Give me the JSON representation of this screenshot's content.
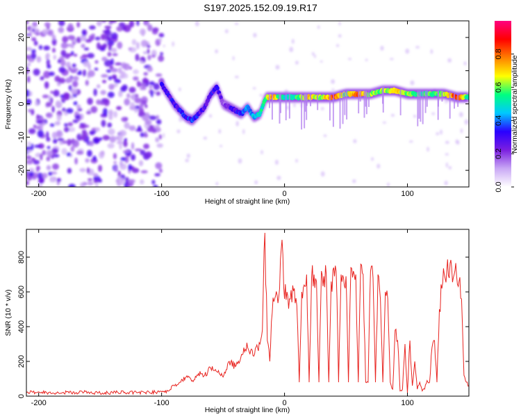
{
  "title": "S197.2025.152.09.19.R17",
  "chart_data": [
    {
      "type": "heatmap",
      "xlabel": "Height of straight line (km)",
      "ylabel": "Frequency (Hz)",
      "xlim": [
        -210,
        150
      ],
      "ylim": [
        -25,
        25
      ],
      "x_ticks": [
        -200,
        -100,
        0,
        100
      ],
      "y_ticks": [
        20,
        10,
        0,
        -10,
        -20
      ],
      "colorbar": {
        "label": "Normalized spectral amplitude",
        "range": [
          0,
          1
        ],
        "ticks": [
          "0.0",
          "0.2",
          "0.4",
          "0.6",
          "0.8"
        ],
        "colormap": [
          "#ffffff",
          "#c9a8f5",
          "#7b1fe0",
          "#2a00ff",
          "#00c8ff",
          "#00ff80",
          "#ffff00",
          "#ff8000",
          "#ff0000",
          "#ff0080"
        ]
      },
      "ridge": {
        "x": [
          -100,
          -95,
          -90,
          -85,
          -80,
          -75,
          -70,
          -65,
          -60,
          -55,
          -50,
          -45,
          -40,
          -35,
          -30,
          -25,
          -20,
          -15,
          -10,
          -5,
          0,
          10,
          20,
          30,
          40,
          50,
          60,
          70,
          80,
          90,
          100,
          110,
          120,
          130,
          140,
          150
        ],
        "freq_hz": [
          6,
          3,
          0,
          -2,
          -4,
          -5,
          -3,
          -1,
          3,
          5,
          0,
          -1,
          -2,
          -3,
          -1,
          -4,
          -3,
          2,
          2,
          2,
          2,
          2,
          2,
          2,
          2,
          3,
          3,
          3,
          4,
          4,
          3,
          3,
          3,
          3,
          2,
          2
        ],
        "amplitude": [
          0.3,
          0.3,
          0.3,
          0.3,
          0.35,
          0.35,
          0.3,
          0.25,
          0.3,
          0.3,
          0.2,
          0.25,
          0.3,
          0.35,
          0.4,
          0.45,
          0.5,
          0.55,
          0.8,
          0.55,
          0.5,
          0.55,
          0.7,
          0.6,
          0.85,
          0.6,
          0.8,
          0.6,
          0.6,
          0.7,
          0.6,
          0.55,
          0.55,
          0.6,
          0.85,
          0.5
        ]
      },
      "noise_region_x": [
        -210,
        -100
      ]
    },
    {
      "type": "line",
      "xlabel": "Height of straight line (km)",
      "ylabel": "SNR (10 * v/v)",
      "xlim": [
        -210,
        150
      ],
      "ylim": [
        0,
        960
      ],
      "x_ticks": [
        -200,
        -100,
        0,
        100
      ],
      "y_ticks": [
        0,
        200,
        400,
        600,
        800
      ],
      "color": "#e8231f",
      "series": [
        {
          "x": [
            -210,
            -200,
            -190,
            -180,
            -170,
            -160,
            -150,
            -140,
            -130,
            -120,
            -110,
            -100,
            -95,
            -90,
            -85,
            -80,
            -75,
            -70,
            -65,
            -60,
            -55,
            -50,
            -45,
            -40,
            -35,
            -30,
            -25,
            -20,
            -18,
            -16,
            -14,
            -12,
            -10,
            -8,
            -6,
            -4,
            -2,
            0,
            2,
            4,
            6,
            8,
            10,
            12,
            14,
            16,
            18,
            20,
            22,
            24,
            26,
            28,
            30,
            32,
            34,
            36,
            38,
            40,
            42,
            44,
            46,
            48,
            50,
            52,
            54,
            56,
            58,
            60,
            62,
            64,
            66,
            68,
            70,
            72,
            74,
            76,
            78,
            80,
            82,
            84,
            86,
            88,
            90,
            92,
            94,
            96,
            98,
            100,
            102,
            104,
            106,
            108,
            110,
            112,
            114,
            116,
            118,
            120,
            122,
            124,
            126,
            128,
            130,
            132,
            134,
            136,
            138,
            140,
            142,
            144,
            146,
            148,
            150
          ],
          "values": [
            20,
            25,
            15,
            22,
            18,
            24,
            17,
            20,
            23,
            19,
            22,
            25,
            30,
            60,
            80,
            110,
            90,
            130,
            120,
            160,
            140,
            110,
            200,
            170,
            240,
            280,
            230,
            300,
            380,
            940,
            320,
            200,
            480,
            560,
            580,
            620,
            900,
            560,
            600,
            560,
            540,
            620,
            520,
            80,
            600,
            640,
            700,
            80,
            680,
            700,
            660,
            80,
            720,
            690,
            700,
            80,
            660,
            740,
            720,
            80,
            700,
            680,
            690,
            80,
            740,
            720,
            700,
            80,
            760,
            700,
            80,
            80,
            720,
            680,
            80,
            700,
            560,
            80,
            600,
            560,
            80,
            40,
            380,
            320,
            30,
            40,
            300,
            20,
            320,
            60,
            200,
            40,
            80,
            30,
            40,
            90,
            80,
            280,
            320,
            80,
            500,
            620,
            700,
            720,
            680,
            740,
            700,
            690,
            660,
            560,
            120,
            80,
            60
          ]
        }
      ]
    }
  ]
}
